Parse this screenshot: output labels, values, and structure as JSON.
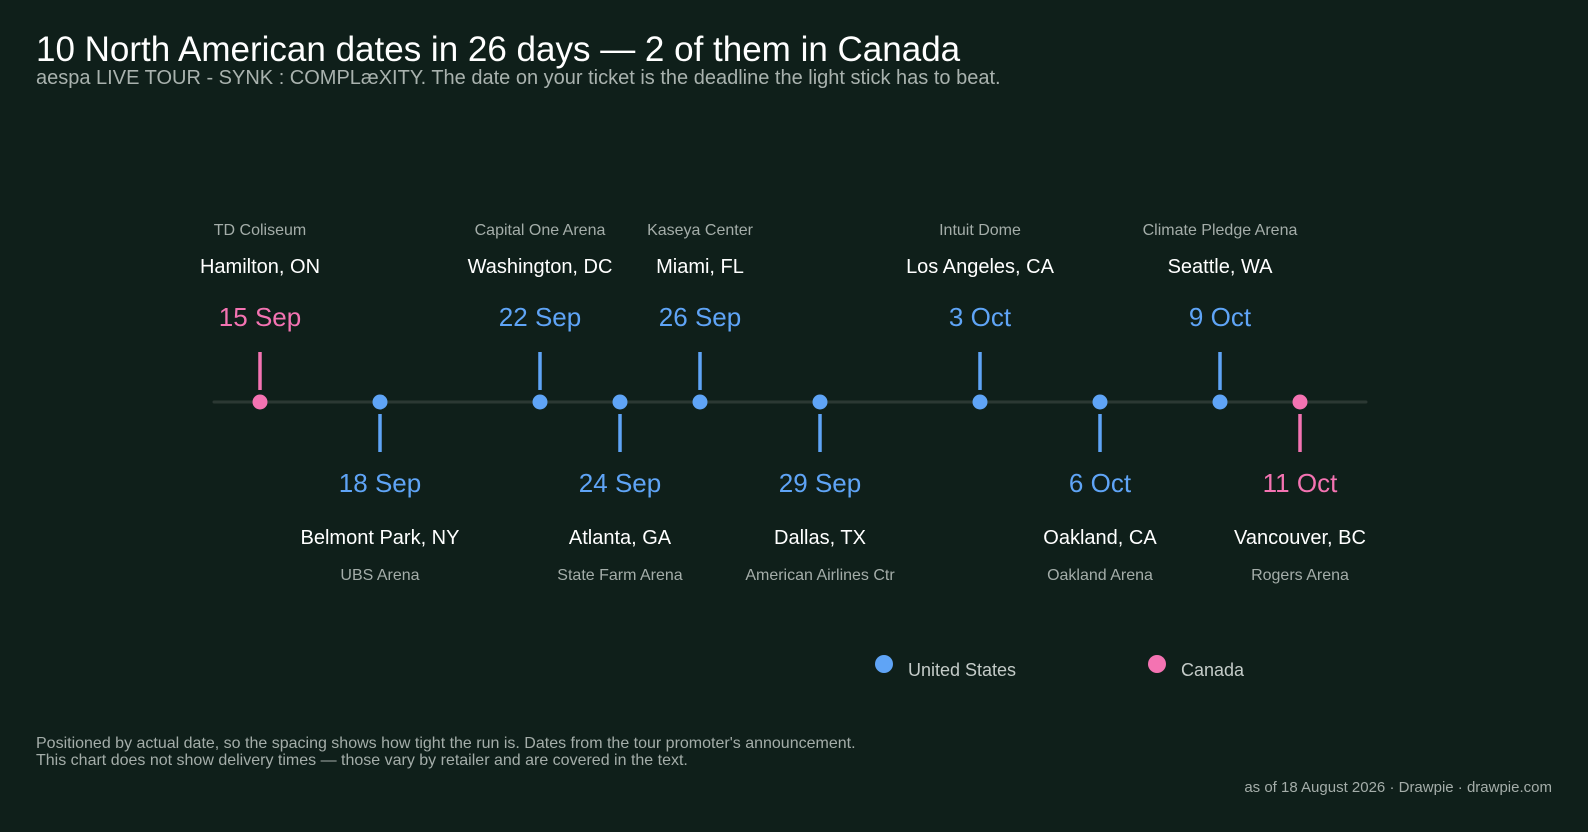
{
  "header": {
    "title": "10 North American dates in 26 days — 2 of them in Canada",
    "subtitle": "aespa LIVE TOUR - SYNK : COMPLæXITY. The date on your ticket is the deadline the light stick has to beat."
  },
  "footer": {
    "note_line1": "Positioned by actual date, so the spacing shows how tight the run is. Dates from the tour promoter's announcement.",
    "note_line2": "This chart does not show delivery times — those vary by retailer and are covered in the text.",
    "credit": "as of 18 August 2026  ·  Drawpie · drawpie.com"
  },
  "colors": {
    "United States": "#5fa4f6",
    "Canada": "#f473b2",
    "axis": "#2b3833",
    "city": "#ffffff",
    "venue": "#a4ada9"
  },
  "chart_data": {
    "type": "timeline",
    "x_range": [
      "2026-09-14",
      "2026-10-12"
    ],
    "legend": [
      "United States",
      "Canada"
    ],
    "legend_position": "bottom-right",
    "events": [
      {
        "date": "2026-09-15",
        "label": "15 Sep",
        "city": "Hamilton, ON",
        "venue": "TD Coliseum",
        "country": "Canada",
        "side": "above"
      },
      {
        "date": "2026-09-18",
        "label": "18 Sep",
        "city": "Belmont Park, NY",
        "venue": "UBS Arena",
        "country": "United States",
        "side": "below"
      },
      {
        "date": "2026-09-22",
        "label": "22 Sep",
        "city": "Washington, DC",
        "venue": "Capital One Arena",
        "country": "United States",
        "side": "above"
      },
      {
        "date": "2026-09-24",
        "label": "24 Sep",
        "city": "Atlanta, GA",
        "venue": "State Farm Arena",
        "country": "United States",
        "side": "below"
      },
      {
        "date": "2026-09-26",
        "label": "26 Sep",
        "city": "Miami, FL",
        "venue": "Kaseya Center",
        "country": "United States",
        "side": "above"
      },
      {
        "date": "2026-09-29",
        "label": "29 Sep",
        "city": "Dallas, TX",
        "venue": "American Airlines Ctr",
        "country": "United States",
        "side": "below"
      },
      {
        "date": "2026-10-03",
        "label": "3 Oct",
        "city": "Los Angeles, CA",
        "venue": "Intuit Dome",
        "country": "United States",
        "side": "above"
      },
      {
        "date": "2026-10-06",
        "label": "6 Oct",
        "city": "Oakland, CA",
        "venue": "Oakland Arena",
        "country": "United States",
        "side": "below"
      },
      {
        "date": "2026-10-09",
        "label": "9 Oct",
        "city": "Seattle, WA",
        "venue": "Climate Pledge Arena",
        "country": "United States",
        "side": "above"
      },
      {
        "date": "2026-10-11",
        "label": "11 Oct",
        "city": "Vancouver, BC",
        "venue": "Rogers Arena",
        "country": "Canada",
        "side": "below"
      }
    ]
  }
}
